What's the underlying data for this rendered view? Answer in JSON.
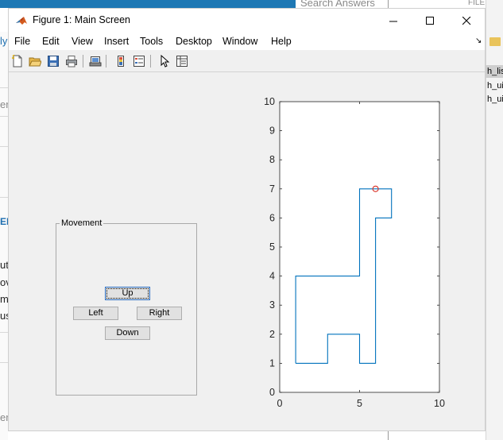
{
  "background": {
    "search_text": "Search Answers",
    "file_label": "FILE",
    "list_items": [
      "h_lis",
      "h_ui",
      "h_ui"
    ],
    "left_fragments": [
      "ly",
      "er",
      "EI",
      "ut",
      "ov",
      "m",
      "us",
      "er"
    ]
  },
  "window": {
    "title": "Figure 1: Main Screen",
    "controls": [
      "minimize",
      "maximize",
      "close"
    ]
  },
  "menu": {
    "items": [
      "File",
      "Edit",
      "View",
      "Insert",
      "Tools",
      "Desktop",
      "Window",
      "Help"
    ]
  },
  "toolbar": {
    "icons": [
      "new-figure-icon",
      "open-icon",
      "save-icon",
      "print-icon",
      "link-plot-icon",
      "insert-colorbar-icon",
      "insert-legend-icon",
      "edit-plot-icon",
      "property-inspector-icon"
    ]
  },
  "movement_panel": {
    "title": "Movement",
    "buttons": {
      "up": "Up",
      "left": "Left",
      "right": "Right",
      "down": "Down"
    },
    "focused": "Up"
  },
  "chart_data": {
    "type": "line",
    "xlim": [
      0,
      10
    ],
    "ylim": [
      0,
      10
    ],
    "xticks": [
      "0",
      "5",
      "10"
    ],
    "yticks": [
      "0",
      "1",
      "2",
      "3",
      "4",
      "5",
      "6",
      "7",
      "8",
      "9",
      "10"
    ],
    "grid": false,
    "series": [
      {
        "color": "#0072bd",
        "x": [
          1,
          3,
          3,
          5,
          5,
          6,
          6,
          7,
          7,
          6,
          6,
          5,
          5,
          1,
          1
        ],
        "y": [
          1,
          1,
          2,
          2,
          1,
          1,
          6,
          6,
          7,
          7,
          7,
          7,
          4,
          4,
          1
        ]
      }
    ],
    "marker": {
      "x": 6,
      "y": 7,
      "color": "#d93025",
      "shape": "circle"
    }
  }
}
